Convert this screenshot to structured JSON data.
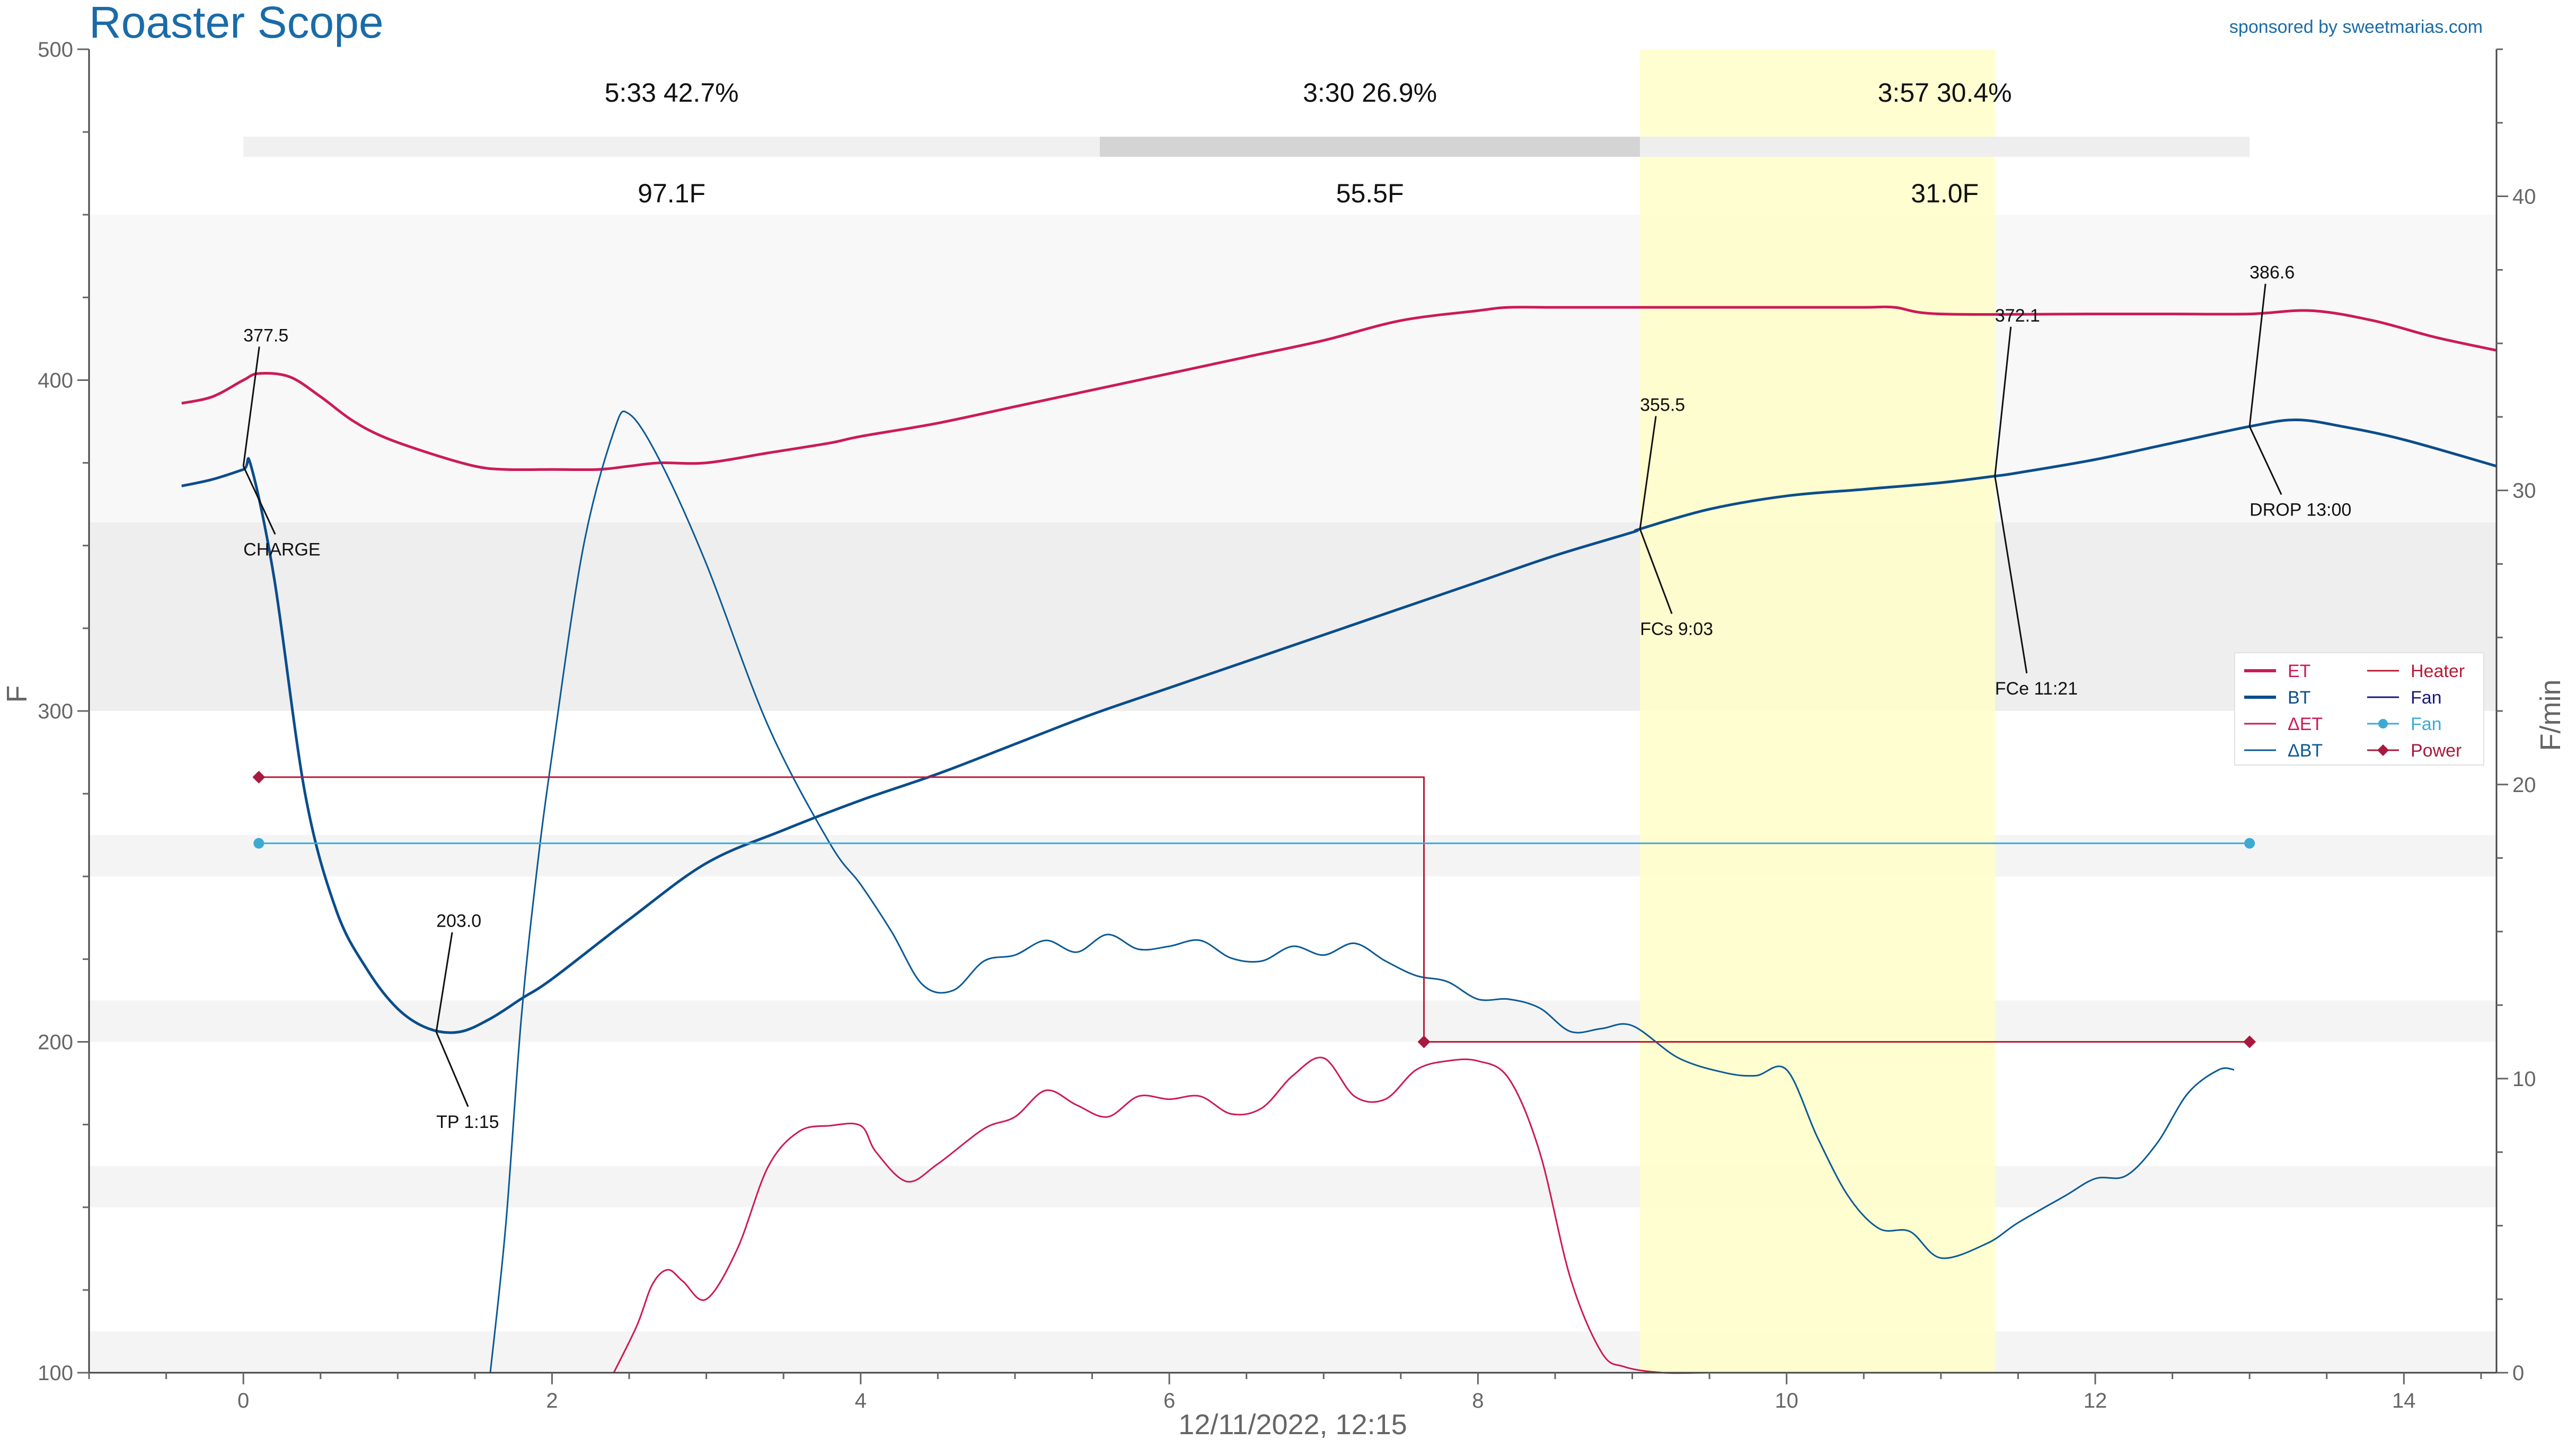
{
  "app": {
    "title": "Roaster Scope",
    "sponsor": "sponsored by sweetmarias.com"
  },
  "chart_data": {
    "type": "line",
    "title": "Roaster Scope",
    "xlabel": "12/11/2022, 12:15",
    "ylabel": "F",
    "y2label": "F/min",
    "xlim": [
      -1,
      14.6
    ],
    "ylim": [
      100,
      500
    ],
    "y2lim": [
      0,
      45
    ],
    "x_ticks": [
      "0",
      "2",
      "4",
      "6",
      "8",
      "10",
      "12",
      "14"
    ],
    "x_tick_values": [
      0,
      2,
      4,
      6,
      8,
      10,
      12,
      14
    ],
    "y_ticks": [
      "100",
      "200",
      "300",
      "400",
      "500"
    ],
    "y_tick_values": [
      100,
      200,
      300,
      400,
      500
    ],
    "y2_ticks": [
      "0",
      "10",
      "20",
      "30",
      "40"
    ],
    "y2_tick_values": [
      0,
      10,
      20,
      30,
      40
    ],
    "grid": false,
    "legend_position": "right",
    "colors": {
      "ET": "#cc1a57",
      "BT": "#0a4d8c",
      "dET": "#cc1a57",
      "dBT": "#0a5a96",
      "Heater": "#b71b39",
      "Fan": "#3daad4",
      "FanLegend": "#1a1a7a",
      "Power": "#a8193d",
      "firstCrack": "#fffec8"
    },
    "phases": [
      {
        "time": "5:33",
        "pct": "42.7%",
        "delta": "97.1F",
        "start": 0,
        "end": 5.55
      },
      {
        "time": "3:30",
        "pct": "26.9%",
        "delta": "55.5F",
        "start": 5.55,
        "end": 9.05
      },
      {
        "time": "3:57",
        "pct": "30.4%",
        "delta": "31.0F",
        "start": 9.05,
        "end": 13.0
      }
    ],
    "first_crack_band": [
      9.05,
      11.35
    ],
    "legend": [
      {
        "label": "ET",
        "color": "#cc1a57",
        "style": "thick"
      },
      {
        "label": "BT",
        "color": "#0a4d8c",
        "style": "thick"
      },
      {
        "label": "ΔET",
        "color": "#cc1a57",
        "style": "thin"
      },
      {
        "label": "ΔBT",
        "color": "#0a5a96",
        "style": "thin"
      },
      {
        "label": "Heater",
        "color": "#b71b39",
        "style": "thin"
      },
      {
        "label": "Fan",
        "color": "#1a1a7a",
        "style": "thin"
      },
      {
        "label": "Fan",
        "color": "#3daad4",
        "style": "dot"
      },
      {
        "label": "Power",
        "color": "#a8193d",
        "style": "diamond"
      }
    ],
    "events": [
      {
        "name": "CHARGE",
        "value": "377.5",
        "x": 0.0,
        "y": 374
      },
      {
        "name": "TP 1:15",
        "value": "203.0",
        "x": 1.25,
        "y": 203
      },
      {
        "name": "FCs 9:03",
        "value": "355.5",
        "x": 9.05,
        "y": 355
      },
      {
        "name": "FCe 11:21",
        "value": "372.1",
        "x": 11.35,
        "y": 371
      },
      {
        "name": "DROP 13:00",
        "value": "386.6",
        "x": 13.0,
        "y": 386
      }
    ],
    "series": [
      {
        "name": "ET",
        "axis": "left",
        "width": 5,
        "x": [
          -0.4,
          -0.2,
          0,
          0.1,
          0.3,
          0.5,
          0.7,
          0.9,
          1.2,
          1.5,
          1.7,
          2,
          2.3,
          2.5,
          2.7,
          3,
          3.4,
          3.8,
          4,
          4.5,
          5,
          5.5,
          6,
          6.5,
          7,
          7.5,
          8,
          8.2,
          8.5,
          9,
          9.5,
          10,
          10.5,
          10.7,
          11,
          12,
          12.5,
          13,
          13.4,
          13.8,
          14.2,
          14.6
        ],
        "y": [
          393,
          395,
          400,
          402,
          401,
          395,
          388,
          383,
          378,
          374,
          373,
          373,
          373,
          374,
          375,
          375,
          378,
          381,
          383,
          387,
          392,
          397,
          402,
          407,
          412,
          418,
          421,
          422,
          422,
          422,
          422,
          422,
          422,
          422,
          420,
          420,
          420,
          420,
          421,
          418,
          413,
          409
        ]
      },
      {
        "name": "BT",
        "axis": "left",
        "width": 5,
        "x": [
          -0.4,
          -0.2,
          0,
          0.05,
          0.2,
          0.4,
          0.6,
          0.8,
          1,
          1.2,
          1.4,
          1.6,
          1.8,
          2,
          2.5,
          3,
          3.5,
          4,
          4.5,
          5,
          5.5,
          6,
          6.5,
          7,
          7.5,
          8,
          8.5,
          9,
          9.05,
          9.5,
          10,
          10.5,
          11,
          11.35,
          11.5,
          12,
          12.5,
          13,
          13.3,
          13.6,
          14,
          14.6
        ],
        "y": [
          368,
          370,
          373,
          374,
          340,
          275,
          240,
          222,
          210,
          204,
          203,
          207,
          213,
          219,
          237,
          254,
          264,
          273,
          281,
          290,
          299,
          307,
          315,
          323,
          331,
          339,
          347,
          354,
          355,
          361,
          365,
          367,
          369,
          371,
          372,
          376,
          381,
          386,
          388,
          386,
          382,
          374
        ]
      },
      {
        "name": "ΔET",
        "axis": "right",
        "width": 3,
        "x": [
          2.4,
          2.55,
          2.65,
          2.75,
          2.85,
          3.0,
          3.2,
          3.4,
          3.6,
          3.8,
          4.0,
          4.1,
          4.3,
          4.5,
          4.8,
          5.0,
          5.2,
          5.4,
          5.6,
          5.8,
          6.0,
          6.2,
          6.4,
          6.6,
          6.8,
          7.0,
          7.2,
          7.4,
          7.6,
          7.8,
          8.0,
          8.2,
          8.4,
          8.6,
          8.8,
          8.95,
          9.2,
          9.5,
          10,
          10.5,
          10.6,
          11.5,
          12,
          13.2,
          14.5
        ],
        "y": [
          0,
          1.6,
          3,
          3.5,
          3.1,
          2.5,
          4.2,
          7,
          8.2,
          8.4,
          8.4,
          7.5,
          6.5,
          7.1,
          8.3,
          8.7,
          9.6,
          9.1,
          8.7,
          9.4,
          9.3,
          9.4,
          8.8,
          9.0,
          10.1,
          10.7,
          9.4,
          9.3,
          10.3,
          10.6,
          10.6,
          10.0,
          7.5,
          3.2,
          0.7,
          0.2,
          0,
          0,
          0,
          0,
          0,
          0,
          0,
          0,
          0
        ]
      },
      {
        "name": "ΔBT",
        "axis": "right",
        "width": 3,
        "x": [
          1.6,
          1.7,
          1.8,
          1.9,
          2.0,
          2.2,
          2.4,
          2.5,
          2.7,
          3.0,
          3.4,
          3.8,
          4.0,
          4.2,
          4.4,
          4.6,
          4.8,
          5.0,
          5.2,
          5.4,
          5.6,
          5.8,
          6.0,
          6.2,
          6.4,
          6.6,
          6.8,
          7.0,
          7.2,
          7.4,
          7.6,
          7.8,
          8.0,
          8.2,
          8.4,
          8.6,
          8.8,
          9.0,
          9.3,
          9.6,
          9.8,
          10.0,
          10.2,
          10.4,
          10.6,
          10.8,
          11.0,
          11.3,
          11.5,
          11.8,
          12.0,
          12.2,
          12.4,
          12.6,
          12.8,
          12.9
        ],
        "y": [
          0,
          5,
          12,
          17,
          21,
          28,
          32,
          32.6,
          31,
          27.5,
          22,
          18,
          16.6,
          15,
          13.2,
          13,
          14,
          14.2,
          14.7,
          14.3,
          14.9,
          14.4,
          14.5,
          14.7,
          14.1,
          14.0,
          14.5,
          14.2,
          14.6,
          14.0,
          13.5,
          13.3,
          12.7,
          12.7,
          12.4,
          11.6,
          11.7,
          11.8,
          10.7,
          10.2,
          10.1,
          10.3,
          8.0,
          6.0,
          4.9,
          4.8,
          3.9,
          4.4,
          5.1,
          6.0,
          6.6,
          6.7,
          7.8,
          9.5,
          10.3,
          10.3
        ]
      },
      {
        "name": "Heater",
        "axis": "left",
        "width": 3,
        "x": [
          0.1,
          7.65,
          7.65,
          13.0
        ],
        "y": [
          280,
          280,
          200,
          200
        ]
      },
      {
        "name": "Fan",
        "axis": "left",
        "width": 3,
        "x": [
          0.1,
          13.0
        ],
        "y": [
          260,
          260
        ]
      }
    ],
    "power_points": [
      [
        0.1,
        280
      ],
      [
        7.65,
        200
      ],
      [
        13.0,
        200
      ]
    ],
    "fan_points": [
      [
        0.1,
        260
      ],
      [
        13.0,
        260
      ]
    ]
  }
}
